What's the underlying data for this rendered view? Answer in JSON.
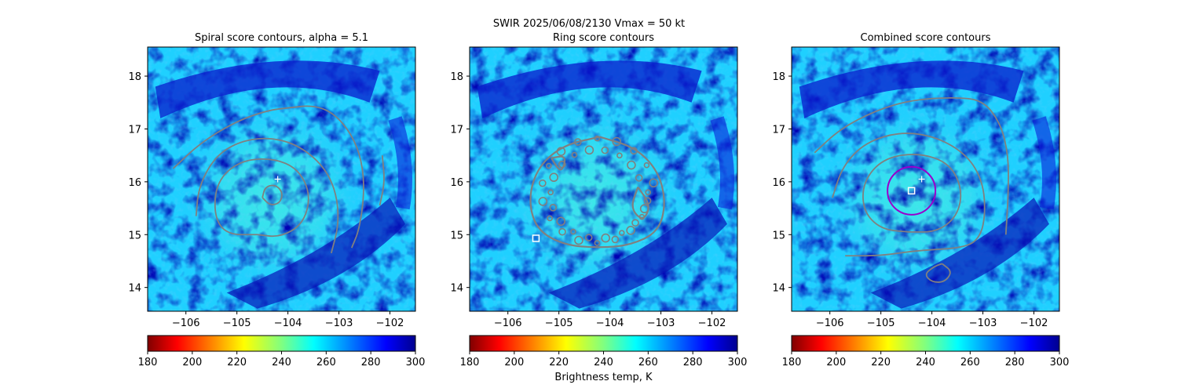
{
  "figure": {
    "suptitle": "SWIR  2025/06/08/2130    Vmax = 50 kt",
    "colorbar_label": "Brightness temp, K"
  },
  "chart_data": [
    {
      "type": "heatmap",
      "title": "Spiral score contours, alpha =  5.1",
      "xlim": [
        -106.75,
        -101.5
      ],
      "ylim": [
        13.55,
        18.55
      ],
      "xticks": [
        -106,
        -105,
        -104,
        -103,
        -102
      ],
      "yticks": [
        14,
        15,
        16,
        17,
        18
      ],
      "colorbar": {
        "range": [
          180,
          300
        ],
        "ticks": [
          180,
          200,
          220,
          240,
          260,
          280,
          300
        ],
        "colormap": "jet_reversed"
      },
      "markers": [
        {
          "kind": "plus",
          "lon": -104.2,
          "lat": 16.05,
          "color": "#ffffff"
        }
      ],
      "contour_color": "#808080"
    },
    {
      "type": "heatmap",
      "title": "Ring score contours",
      "xlim": [
        -106.75,
        -101.5
      ],
      "ylim": [
        13.55,
        18.55
      ],
      "xticks": [
        -106,
        -105,
        -104,
        -103,
        -102
      ],
      "yticks": [
        14,
        15,
        16,
        17,
        18
      ],
      "colorbar": {
        "range": [
          180,
          300
        ],
        "ticks": [
          180,
          200,
          220,
          240,
          260,
          280,
          300
        ],
        "colormap": "jet_reversed"
      },
      "markers": [
        {
          "kind": "square",
          "lon": -105.45,
          "lat": 14.93,
          "color": "#ffffff"
        }
      ],
      "contour_color": "#808080"
    },
    {
      "type": "heatmap",
      "title": "Combined score contours",
      "xlim": [
        -106.75,
        -101.5
      ],
      "ylim": [
        13.55,
        18.55
      ],
      "xticks": [
        -106,
        -105,
        -104,
        -103,
        -102
      ],
      "yticks": [
        14,
        15,
        16,
        17,
        18
      ],
      "colorbar": {
        "range": [
          180,
          300
        ],
        "ticks": [
          180,
          200,
          220,
          240,
          260,
          280,
          300
        ],
        "colormap": "jet_reversed"
      },
      "markers": [
        {
          "kind": "square",
          "lon": -104.4,
          "lat": 15.83,
          "color": "#ffffff"
        },
        {
          "kind": "plus",
          "lon": -104.2,
          "lat": 16.05,
          "color": "#ffffff"
        }
      ],
      "circle": {
        "lon": -104.4,
        "lat": 15.83,
        "radius_deg": 0.47,
        "color": "#9900cc"
      },
      "contour_color": "#808080"
    }
  ]
}
